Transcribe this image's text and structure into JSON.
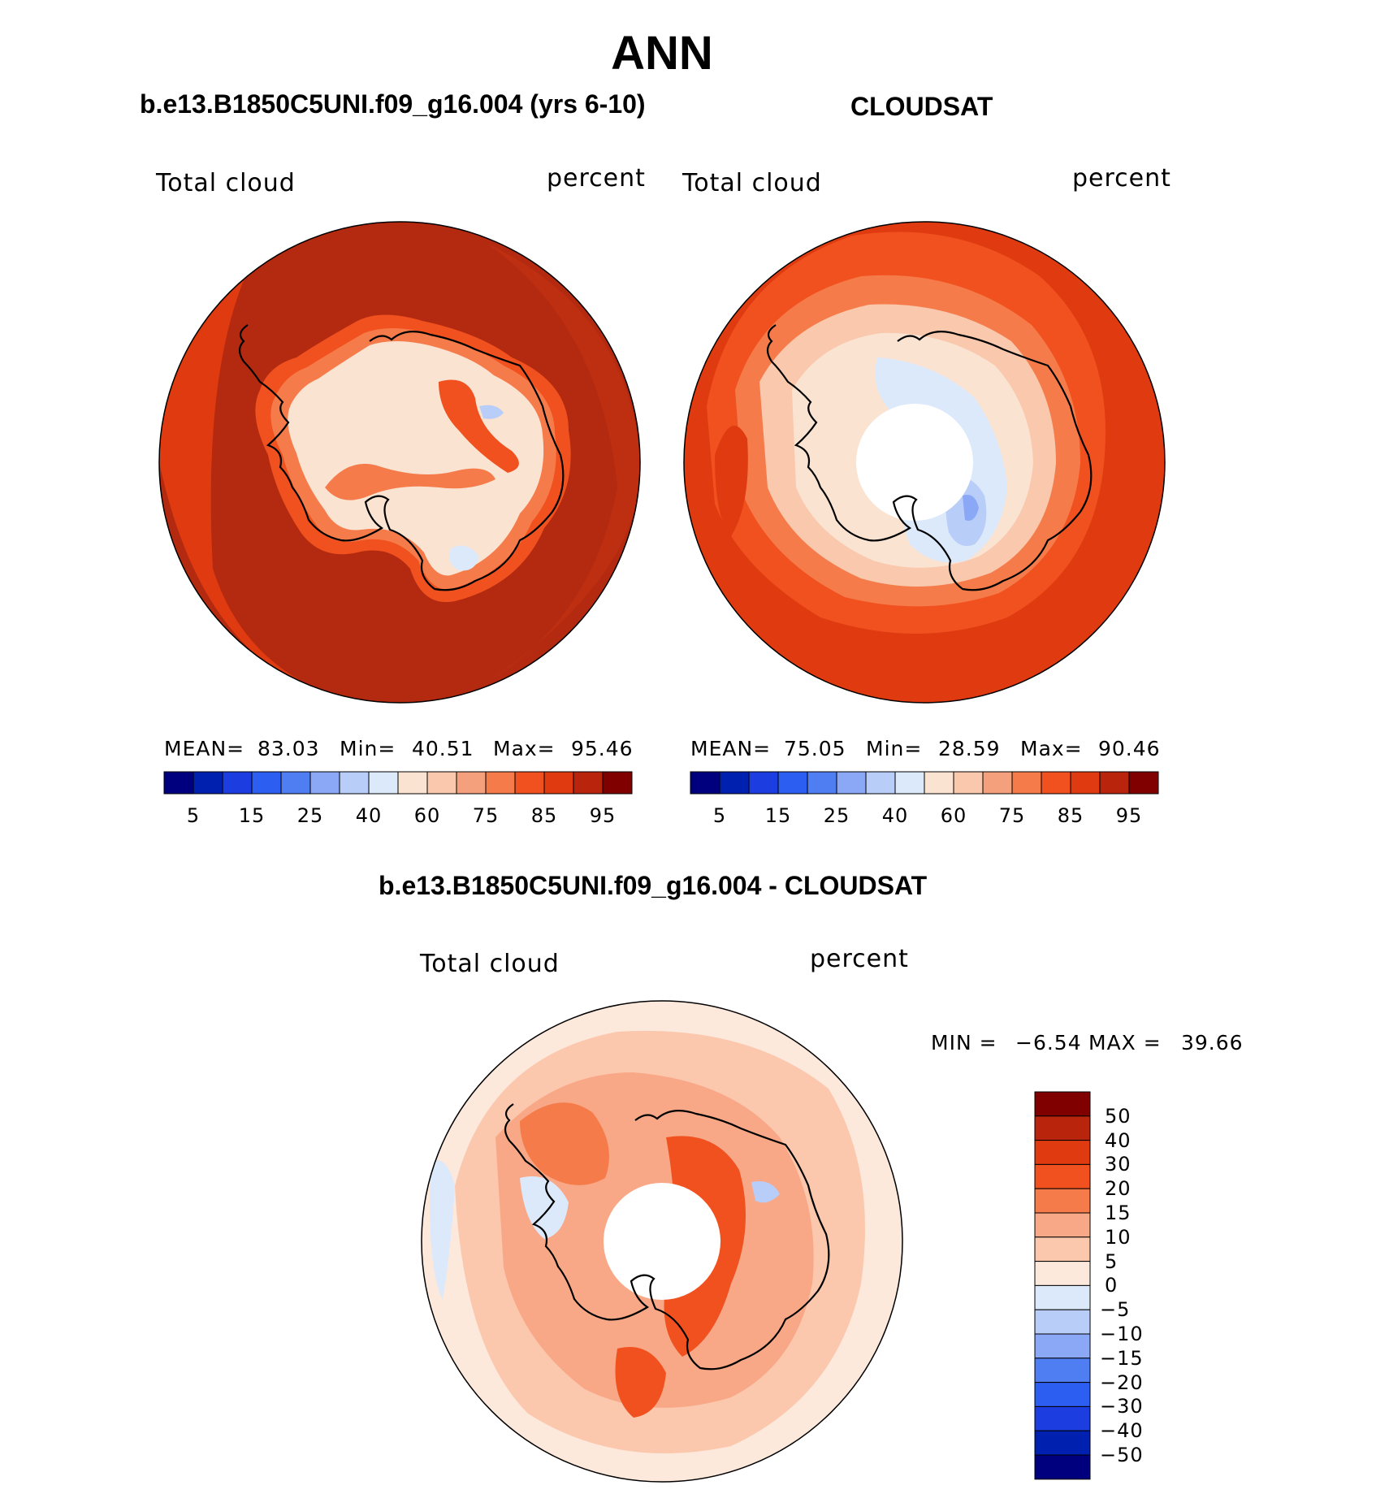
{
  "title": "ANN",
  "panels": [
    {
      "title": "b.e13.B1850C5UNI.f09_g16.004 (yrs 6-10)",
      "variable": "Total cloud",
      "units": "percent",
      "mean_label": "MEAN=",
      "mean": "83.03",
      "min_label": "Min=",
      "min": "40.51",
      "max_label": "Max=",
      "max": "95.46",
      "ocean_color": "#b42a10",
      "rim_color": "#e03a10"
    },
    {
      "title": "CLOUDSAT",
      "variable": "Total cloud",
      "units": "percent",
      "mean_label": "MEAN=",
      "mean": "75.05",
      "min_label": "Min=",
      "min": "28.59",
      "max_label": "Max=",
      "max": "90.46",
      "ocean_color": "#e03a10",
      "rim_color": "#f0511f"
    },
    {
      "title": "b.e13.B1850C5UNI.f09_g16.004 - CLOUDSAT",
      "variable": "Total cloud",
      "units": "percent",
      "min_label": "MIN =",
      "min": "−6.54",
      "max_label": "MAX =",
      "max": "39.66"
    }
  ],
  "colorbar_abs": {
    "colors": [
      "#00007f",
      "#0020b0",
      "#1c3ee0",
      "#2d5ef2",
      "#4f7ef2",
      "#8aa8f5",
      "#b8cdf8",
      "#dbe9fb",
      "#fbe3d2",
      "#f9c8ad",
      "#f4a07c",
      "#f57c4a",
      "#f0511f",
      "#e03a10",
      "#b8240c",
      "#800000"
    ],
    "ticks": [
      "5",
      "15",
      "25",
      "40",
      "60",
      "75",
      "85",
      "95"
    ]
  },
  "colorbar_diff": {
    "colors": [
      "#800000",
      "#b8240c",
      "#e03a10",
      "#f0511f",
      "#f57c4a",
      "#f9a887",
      "#fbc8ad",
      "#fde8dc",
      "#dbe9fb",
      "#b8cdf8",
      "#8aa8f5",
      "#4f7ef2",
      "#2d5ef2",
      "#1c3ee0",
      "#0020b0",
      "#00007f"
    ],
    "ticks": [
      "50",
      "40",
      "30",
      "20",
      "15",
      "10",
      "5",
      "0",
      "−5",
      "−10",
      "−15",
      "−20",
      "−30",
      "−40",
      "−50"
    ]
  },
  "icons": [
    "antarctica-coastline-icon"
  ]
}
